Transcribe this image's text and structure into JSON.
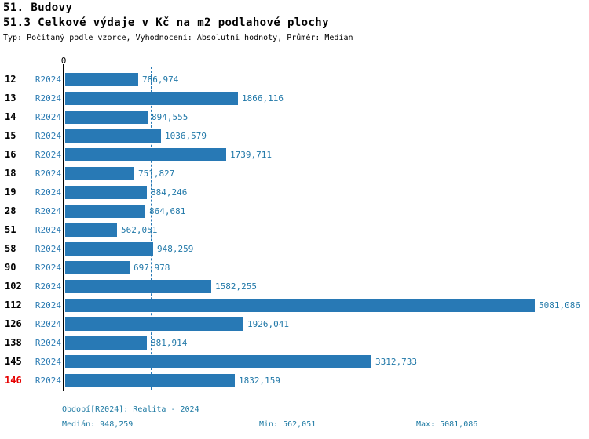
{
  "header": {
    "title": "51. Budovy",
    "subtitle": "51.3 Celkové výdaje v Kč na m2 podlahové plochy",
    "meta": "Typ: Počítaný podle vzorce, Vyhodnocení: Absolutní hodnoty, Průměr: Medián"
  },
  "chart_data": {
    "type": "bar",
    "orientation": "horizontal",
    "title": "51.3 Celkové výdaje v Kč na m2 podlahové plochy",
    "series_label": "R2024",
    "axis_zero_label": "0",
    "categories": [
      "12",
      "13",
      "14",
      "15",
      "16",
      "18",
      "19",
      "28",
      "51",
      "58",
      "90",
      "102",
      "112",
      "126",
      "138",
      "145",
      "146"
    ],
    "values": [
      786.974,
      1866.116,
      894.555,
      1036.579,
      1739.711,
      751.827,
      884.246,
      864.681,
      562.051,
      948.259,
      697.978,
      1582.255,
      5081.086,
      1926.041,
      881.914,
      3312.733,
      1832.159
    ],
    "value_labels": [
      "786,974",
      "1866,116",
      "894,555",
      "1036,579",
      "1739,711",
      "751,827",
      "884,246",
      "864,681",
      "562,051",
      "948,259",
      "697,978",
      "1582,255",
      "5081,086",
      "1926,041",
      "881,914",
      "3312,733",
      "1832,159"
    ],
    "highlighted_category": "146",
    "median_value": 948.259,
    "min_value": 562.051,
    "max_value": 5081.086,
    "xlim": [
      0,
      5150
    ],
    "grid": false,
    "median_line": true,
    "bar_color": "#2879b5",
    "highlight_color": "#e60000",
    "label_color": "#2178a8"
  },
  "footer": {
    "period": "Období[R2024]: Realita - 2024",
    "median": "Medián: 948,259",
    "min": "Min: 562,051",
    "max": "Max: 5081,086"
  }
}
